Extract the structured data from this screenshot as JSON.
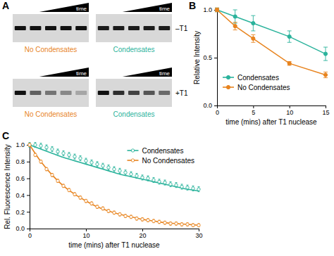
{
  "chart_data": [
    {
      "type": "gel",
      "title": "A",
      "wedge_label": "time",
      "rows": [
        {
          "label": "–T1",
          "groups": [
            {
              "name": "No Condensates",
              "color": "#e8841f",
              "values": [
                1,
                1,
                1,
                1,
                1
              ]
            },
            {
              "name": "Condensates",
              "color": "#2bb39c",
              "values": [
                0.95,
                0.95,
                0.95,
                0.95,
                0.95
              ]
            }
          ]
        },
        {
          "label": "+T1",
          "groups": [
            {
              "name": "No Condensates",
              "color": "#e8841f",
              "values": [
                1,
                0.6,
                0.5,
                0.4,
                0.25
              ]
            },
            {
              "name": "Condensates",
              "color": "#2bb39c",
              "values": [
                1,
                0.85,
                0.75,
                0.65,
                0.55
              ]
            }
          ]
        }
      ]
    },
    {
      "type": "line",
      "title": "B",
      "x_label": "time (mins) after T1 nuclease",
      "y_label": "Relative Intensity",
      "x": [
        0,
        2.5,
        5,
        10,
        15
      ],
      "series": [
        {
          "name": "Condensates",
          "color": "#2bb39c",
          "marker": "circle",
          "values": [
            1.0,
            0.93,
            0.86,
            0.72,
            0.54
          ],
          "errors": [
            0.02,
            0.07,
            0.08,
            0.06,
            0.07
          ]
        },
        {
          "name": "No Condensates",
          "color": "#e8841f",
          "marker": "circle",
          "values": [
            1.0,
            0.83,
            0.7,
            0.44,
            0.32
          ],
          "errors": [
            0.02,
            0.04,
            0.04,
            0.02,
            0.03
          ]
        }
      ],
      "xlim": [
        0,
        15
      ],
      "xticks": [
        0,
        5,
        10,
        15
      ],
      "ylim": [
        0,
        1.0
      ],
      "yticks": [
        {
          "value": 0,
          "label": "0.0"
        },
        0.5,
        {
          "value": 1.0,
          "label": "1.0"
        }
      ],
      "legend": "bottom left"
    },
    {
      "type": "scatter",
      "title": "C",
      "x_label": "time (mins) after T1 nuclease",
      "y_label": "Rel. Fluorescence Intensity",
      "x": [
        0,
        1,
        2,
        3,
        4,
        5,
        6,
        7,
        8,
        9,
        10,
        11,
        12,
        13,
        14,
        15,
        16,
        17,
        18,
        19,
        20,
        21,
        22,
        23,
        24,
        25,
        26,
        27,
        28,
        29,
        30
      ],
      "fit_x": [
        0,
        2,
        4,
        6,
        8,
        10,
        12,
        14,
        16,
        18,
        20,
        22,
        24,
        26,
        28,
        30
      ],
      "series": [
        {
          "name": "Condensates",
          "color": "#2bb39c",
          "marker": "open-circle",
          "values": [
            1.0,
            1.0,
            0.99,
            0.97,
            0.95,
            0.92,
            0.9,
            0.88,
            0.86,
            0.84,
            0.81,
            0.79,
            0.77,
            0.75,
            0.73,
            0.71,
            0.69,
            0.67,
            0.65,
            0.63,
            0.61,
            0.6,
            0.58,
            0.56,
            0.55,
            0.53,
            0.52,
            0.5,
            0.49,
            0.48,
            0.47
          ],
          "errors": [
            0.03,
            0.03,
            0.03,
            0.03,
            0.03,
            0.03,
            0.03,
            0.03,
            0.03,
            0.03,
            0.03,
            0.03,
            0.03,
            0.03,
            0.03,
            0.03,
            0.03,
            0.03,
            0.03,
            0.03,
            0.03,
            0.03,
            0.03,
            0.03,
            0.03,
            0.03,
            0.03,
            0.03,
            0.03,
            0.03,
            0.03
          ],
          "fit_values": [
            1.0,
            0.95,
            0.9,
            0.85,
            0.81,
            0.77,
            0.73,
            0.69,
            0.65,
            0.62,
            0.59,
            0.56,
            0.53,
            0.5,
            0.47,
            0.45
          ]
        },
        {
          "name": "No Condensates",
          "color": "#e8841f",
          "marker": "open-circle",
          "values": [
            1.0,
            0.88,
            0.8,
            0.71,
            0.64,
            0.57,
            0.51,
            0.46,
            0.41,
            0.37,
            0.33,
            0.3,
            0.26,
            0.24,
            0.21,
            0.19,
            0.17,
            0.15,
            0.14,
            0.12,
            0.11,
            0.1,
            0.09,
            0.08,
            0.07,
            0.06,
            0.06,
            0.05,
            0.05,
            0.04,
            0.04
          ],
          "errors": [
            0.02,
            0.02,
            0.02,
            0.02,
            0.02,
            0.02,
            0.02,
            0.02,
            0.02,
            0.02,
            0.02,
            0.02,
            0.02,
            0.02,
            0.02,
            0.02,
            0.02,
            0.02,
            0.02,
            0.02,
            0.02,
            0.02,
            0.02,
            0.02,
            0.02,
            0.02,
            0.02,
            0.02,
            0.02,
            0.02,
            0.02
          ],
          "fit_values": [
            1.0,
            0.8,
            0.64,
            0.51,
            0.41,
            0.33,
            0.26,
            0.21,
            0.17,
            0.14,
            0.11,
            0.09,
            0.07,
            0.06,
            0.05,
            0.04
          ]
        }
      ],
      "xlim": [
        0,
        30
      ],
      "xticks": [
        0,
        10,
        20,
        30
      ],
      "ylim": [
        0,
        1.0
      ],
      "yticks": [
        {
          "value": 0,
          "label": "0.0"
        },
        0.2,
        0.4,
        0.6,
        0.8,
        {
          "value": 1.0,
          "label": "1.0"
        }
      ],
      "legend": "top right"
    }
  ]
}
